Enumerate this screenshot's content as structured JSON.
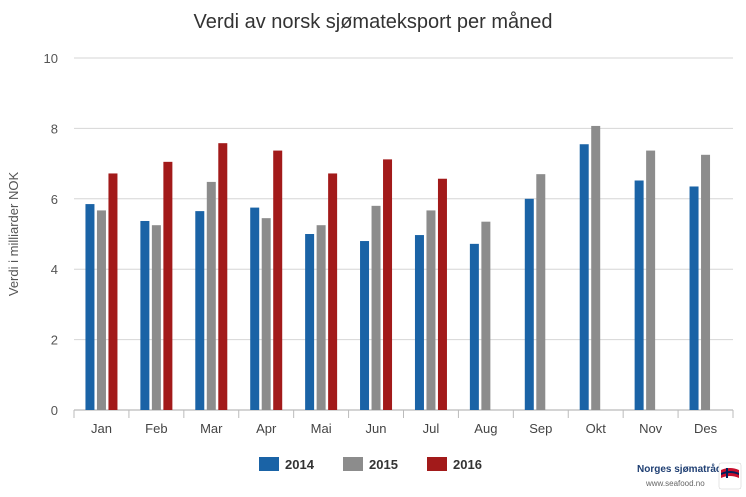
{
  "chart_data": {
    "type": "bar",
    "title": "Verdi av norsk sjømateksport per måned",
    "xlabel": "",
    "ylabel": "Verdi i milliarder NOK",
    "ylim": [
      0,
      10
    ],
    "yticks": [
      "0",
      "2",
      "4",
      "6",
      "8",
      "10"
    ],
    "grid": true,
    "legend_position": "bottom",
    "categories": [
      "Jan",
      "Feb",
      "Mar",
      "Apr",
      "Mai",
      "Jun",
      "Jul",
      "Aug",
      "Sep",
      "Okt",
      "Nov",
      "Des"
    ],
    "series": [
      {
        "name": "2014",
        "color": "#1a63a6",
        "values": [
          5.85,
          5.37,
          5.65,
          5.75,
          5.0,
          4.8,
          4.97,
          4.72,
          6.0,
          7.55,
          6.52,
          6.35
        ]
      },
      {
        "name": "2015",
        "color": "#8c8c8c",
        "values": [
          5.67,
          5.25,
          6.48,
          5.45,
          5.25,
          5.8,
          5.67,
          5.35,
          6.7,
          8.07,
          7.37,
          7.25
        ]
      },
      {
        "name": "2016",
        "color": "#a21a1a",
        "values": [
          6.72,
          7.05,
          7.58,
          7.37,
          6.72,
          7.12,
          6.57,
          null,
          null,
          null,
          null,
          null
        ]
      }
    ]
  },
  "logo": {
    "name": "Norges sjømatråd",
    "url": "www.seafood.no",
    "badge_text": "NORGE",
    "colors": {
      "flag_red": "#c8102e",
      "flag_blue": "#00205b",
      "text": "#1f3f73"
    }
  }
}
